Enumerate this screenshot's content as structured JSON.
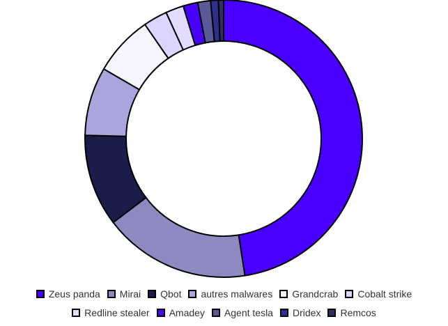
{
  "chart_data": {
    "type": "donut",
    "categories": [
      "Zeus panda",
      "Mirai",
      "Qbot",
      "autres malwares",
      "Grandcrab",
      "Cobalt strike",
      "Redline stealer",
      "Amadey",
      "Agent tesla",
      "Dridex",
      "Remcos"
    ],
    "values": [
      47.5,
      17.1,
      10.7,
      8,
      7,
      2.8,
      2.1,
      1.7,
      1.5,
      0.9,
      0.6
    ],
    "colors": [
      "#4a00ff",
      "#8e89c0",
      "#1b1c4a",
      "#aaa6dd",
      "#f6f4ff",
      "#dcd6ff",
      "#e4dcff",
      "#4a00ff",
      "#5b5a99",
      "#2f2f8f",
      "#2f3060"
    ],
    "legend": "bottom"
  }
}
